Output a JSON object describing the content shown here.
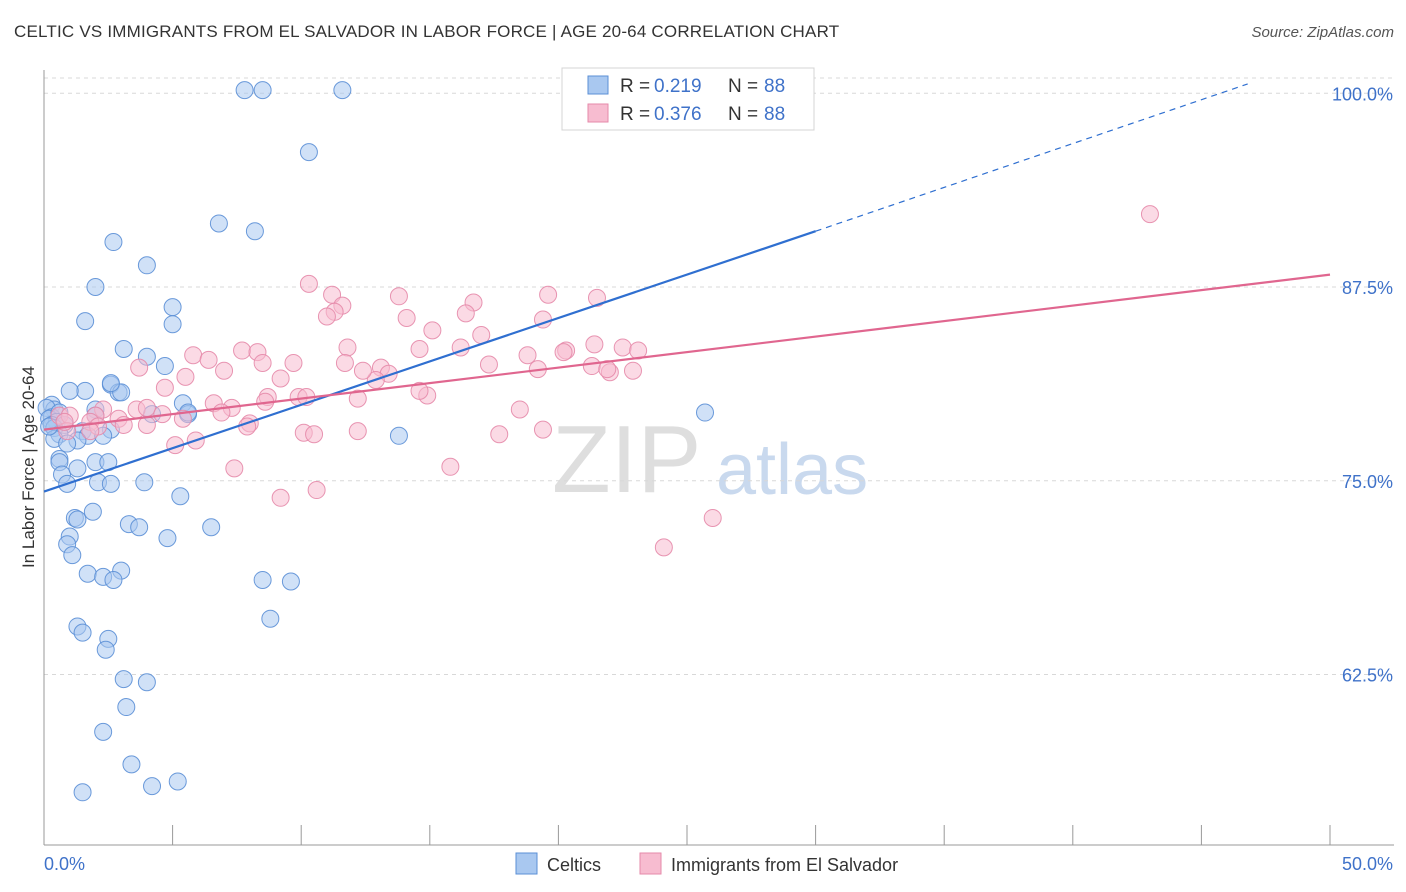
{
  "header": {
    "title": "CELTIC VS IMMIGRANTS FROM EL SALVADOR IN LABOR FORCE | AGE 20-64 CORRELATION CHART",
    "source": "Source: ZipAtlas.com"
  },
  "watermark": {
    "zip": "ZIP",
    "atlas": "atlas"
  },
  "legend_top": [
    {
      "r_label": "R =",
      "r_value": "0.219",
      "n_label": "N =",
      "n_value": "88"
    },
    {
      "r_label": "R =",
      "r_value": "0.376",
      "n_label": "N =",
      "n_value": "88"
    }
  ],
  "colors": {
    "celtic_fill": "#a9c8f0",
    "celtic_stroke": "#5b8fd6",
    "celtic_line": "#2f6fd0",
    "salvador_fill": "#f7bcd0",
    "salvador_stroke": "#e58aaa",
    "salvador_line": "#e0668f",
    "value_text": "#3f72c9",
    "grid": "#d8d8d8"
  },
  "chart_data": {
    "type": "scatter",
    "title": "CELTIC VS IMMIGRANTS FROM EL SALVADOR IN LABOR FORCE | AGE 20-64 CORRELATION CHART",
    "xlabel": "",
    "ylabel": "In Labor Force | Age 20-64",
    "xlim": [
      0,
      50
    ],
    "ylim": [
      51.5,
      101.5
    ],
    "x_tick_labels": [
      {
        "value": 0,
        "label": "0.0%"
      },
      {
        "value": 50,
        "label": "50.0%"
      }
    ],
    "y_tick_labels": [
      {
        "value": 100,
        "label": "100.0%"
      },
      {
        "value": 87.5,
        "label": "87.5%"
      },
      {
        "value": 75,
        "label": "75.0%"
      },
      {
        "value": 62.5,
        "label": "62.5%"
      }
    ],
    "grid": "horizontal-dashed",
    "legend_position": "bottom-center",
    "series": [
      {
        "name": "Celtics",
        "r": 0.219,
        "n": 88,
        "trend": {
          "x_start": 0,
          "y_start": 74.3,
          "x_solid_end": 30,
          "y_solid_end": 91.1,
          "x_end": 46.8,
          "y_end": 100.6
        },
        "points": [
          [
            7.8,
            100.2
          ],
          [
            8.5,
            100.2
          ],
          [
            11.6,
            100.2
          ],
          [
            10.3,
            96.2
          ],
          [
            6.8,
            91.6
          ],
          [
            8.2,
            91.1
          ],
          [
            2.7,
            90.4
          ],
          [
            4.0,
            88.9
          ],
          [
            2.0,
            87.5
          ],
          [
            5.0,
            86.2
          ],
          [
            1.6,
            85.3
          ],
          [
            5.0,
            85.1
          ],
          [
            3.1,
            83.5
          ],
          [
            4.0,
            83.0
          ],
          [
            4.7,
            82.4
          ],
          [
            2.6,
            81.2
          ],
          [
            2.9,
            80.7
          ],
          [
            1.6,
            80.8
          ],
          [
            1.0,
            80.8
          ],
          [
            0.3,
            79.9
          ],
          [
            0.4,
            79.6
          ],
          [
            2.0,
            79.6
          ],
          [
            5.4,
            80.0
          ],
          [
            0.1,
            79.7
          ],
          [
            0.3,
            79.1
          ],
          [
            0.2,
            79.0
          ],
          [
            0.6,
            79.4
          ],
          [
            2.0,
            79.2
          ],
          [
            0.5,
            78.8
          ],
          [
            0.3,
            78.6
          ],
          [
            0.8,
            78.6
          ],
          [
            0.4,
            78.4
          ],
          [
            2.6,
            78.3
          ],
          [
            1.5,
            78.2
          ],
          [
            0.6,
            78.0
          ],
          [
            1.7,
            77.9
          ],
          [
            4.2,
            79.3
          ],
          [
            5.6,
            79.3
          ],
          [
            0.4,
            77.7
          ],
          [
            1.3,
            77.6
          ],
          [
            0.9,
            77.4
          ],
          [
            13.8,
            77.9
          ],
          [
            25.7,
            79.4
          ],
          [
            0.6,
            76.4
          ],
          [
            0.6,
            76.2
          ],
          [
            2.0,
            76.2
          ],
          [
            2.5,
            76.2
          ],
          [
            0.7,
            75.4
          ],
          [
            1.3,
            75.8
          ],
          [
            3.9,
            74.9
          ],
          [
            0.9,
            74.8
          ],
          [
            2.1,
            74.9
          ],
          [
            2.6,
            74.8
          ],
          [
            5.3,
            74.0
          ],
          [
            1.9,
            73.0
          ],
          [
            1.2,
            72.6
          ],
          [
            1.3,
            72.5
          ],
          [
            3.3,
            72.2
          ],
          [
            3.7,
            72.0
          ],
          [
            6.5,
            72.0
          ],
          [
            1.0,
            71.4
          ],
          [
            4.8,
            71.3
          ],
          [
            0.9,
            70.9
          ],
          [
            1.1,
            70.2
          ],
          [
            1.7,
            69.0
          ],
          [
            3.0,
            69.2
          ],
          [
            2.3,
            68.8
          ],
          [
            2.7,
            68.6
          ],
          [
            8.5,
            68.6
          ],
          [
            9.6,
            68.5
          ],
          [
            8.8,
            66.1
          ],
          [
            1.3,
            65.6
          ],
          [
            1.5,
            65.2
          ],
          [
            2.5,
            64.8
          ],
          [
            2.4,
            64.1
          ],
          [
            3.1,
            62.2
          ],
          [
            4.0,
            62.0
          ],
          [
            3.2,
            60.4
          ],
          [
            2.3,
            58.8
          ],
          [
            3.4,
            56.7
          ],
          [
            1.5,
            54.9
          ],
          [
            4.2,
            55.3
          ],
          [
            5.2,
            55.6
          ],
          [
            3.0,
            80.7
          ],
          [
            0.2,
            78.5
          ],
          [
            2.6,
            81.3
          ],
          [
            2.3,
            77.9
          ],
          [
            5.6,
            79.4
          ]
        ]
      },
      {
        "name": "Immigrants from El Salvador",
        "r": 0.376,
        "n": 88,
        "trend": {
          "x_start": 0,
          "y_start": 78.3,
          "x_end": 50,
          "y_end": 88.3
        },
        "points": [
          [
            43.0,
            92.2
          ],
          [
            10.3,
            87.7
          ],
          [
            11.2,
            87.0
          ],
          [
            11.6,
            86.3
          ],
          [
            13.8,
            86.9
          ],
          [
            16.7,
            86.5
          ],
          [
            19.6,
            87.0
          ],
          [
            19.4,
            85.4
          ],
          [
            16.4,
            85.8
          ],
          [
            11.3,
            85.9
          ],
          [
            14.1,
            85.5
          ],
          [
            11.0,
            85.6
          ],
          [
            15.1,
            84.7
          ],
          [
            21.5,
            86.8
          ],
          [
            17.0,
            84.4
          ],
          [
            11.8,
            83.6
          ],
          [
            14.6,
            83.5
          ],
          [
            16.2,
            83.6
          ],
          [
            18.8,
            83.1
          ],
          [
            20.3,
            83.4
          ],
          [
            21.4,
            83.8
          ],
          [
            22.5,
            83.6
          ],
          [
            23.1,
            83.4
          ],
          [
            20.2,
            83.3
          ],
          [
            7.7,
            83.4
          ],
          [
            8.3,
            83.3
          ],
          [
            5.8,
            83.1
          ],
          [
            6.4,
            82.8
          ],
          [
            8.5,
            82.6
          ],
          [
            9.7,
            82.6
          ],
          [
            11.7,
            82.6
          ],
          [
            13.1,
            82.3
          ],
          [
            13.4,
            81.9
          ],
          [
            12.9,
            81.5
          ],
          [
            12.4,
            82.1
          ],
          [
            3.7,
            82.3
          ],
          [
            5.5,
            81.7
          ],
          [
            7.0,
            82.1
          ],
          [
            9.2,
            81.6
          ],
          [
            17.3,
            82.5
          ],
          [
            21.3,
            82.4
          ],
          [
            22.0,
            82.0
          ],
          [
            21.9,
            82.2
          ],
          [
            22.9,
            82.1
          ],
          [
            19.2,
            82.2
          ],
          [
            4.7,
            81.0
          ],
          [
            8.7,
            80.4
          ],
          [
            9.9,
            80.4
          ],
          [
            10.2,
            80.4
          ],
          [
            12.2,
            80.3
          ],
          [
            14.9,
            80.5
          ],
          [
            14.6,
            80.8
          ],
          [
            2.3,
            79.6
          ],
          [
            3.6,
            79.6
          ],
          [
            4.0,
            79.7
          ],
          [
            6.6,
            80.0
          ],
          [
            7.3,
            79.7
          ],
          [
            6.9,
            79.4
          ],
          [
            2.0,
            79.2
          ],
          [
            2.9,
            79.0
          ],
          [
            4.6,
            79.3
          ],
          [
            5.4,
            79.0
          ],
          [
            0.6,
            79.2
          ],
          [
            1.0,
            79.2
          ],
          [
            1.8,
            78.8
          ],
          [
            3.1,
            78.6
          ],
          [
            4.0,
            78.6
          ],
          [
            2.1,
            78.5
          ],
          [
            0.9,
            78.2
          ],
          [
            1.8,
            78.2
          ],
          [
            8.0,
            78.7
          ],
          [
            7.9,
            78.5
          ],
          [
            8.6,
            80.1
          ],
          [
            10.1,
            78.1
          ],
          [
            10.5,
            78.0
          ],
          [
            12.2,
            78.2
          ],
          [
            17.7,
            78.0
          ],
          [
            19.4,
            78.3
          ],
          [
            5.9,
            77.6
          ],
          [
            5.1,
            77.3
          ],
          [
            18.5,
            79.6
          ],
          [
            7.4,
            75.8
          ],
          [
            15.8,
            75.9
          ],
          [
            9.2,
            73.9
          ],
          [
            10.6,
            74.4
          ],
          [
            26.0,
            72.6
          ],
          [
            24.1,
            70.7
          ],
          [
            0.8,
            78.8
          ]
        ]
      }
    ]
  },
  "legend_bottom": [
    {
      "label": "Celtics"
    },
    {
      "label": "Immigrants from El Salvador"
    }
  ]
}
